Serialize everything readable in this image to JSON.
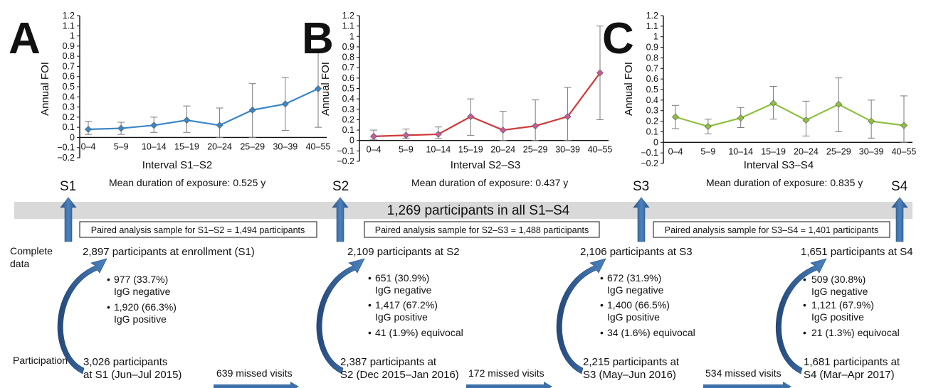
{
  "panels": [
    {
      "letter": "A",
      "interval_label": "Interval S1–S2",
      "mean_duration": "Mean duration of exposure: 0.525 y",
      "color": "#3b86c8",
      "marker_color": "#3b86c8"
    },
    {
      "letter": "B",
      "interval_label": "Interval S2–S3",
      "mean_duration": "Mean duration of exposure: 0.437 y",
      "color": "#d03a3a",
      "marker_color": "#c85a9a"
    },
    {
      "letter": "C",
      "interval_label": "Interval S3–S4",
      "mean_duration": "Mean duration of exposure: 0.835 y",
      "color": "#8dc040",
      "marker_color": "#8dc040"
    }
  ],
  "chart_data": [
    {
      "type": "line",
      "title": "",
      "xlabel": "Interval S1–S2",
      "ylabel": "Annual FOI",
      "categories": [
        "0–4",
        "5–9",
        "10–14",
        "15–19",
        "20–24",
        "25–29",
        "30–39",
        "40–55"
      ],
      "values": [
        0.08,
        0.09,
        0.12,
        0.17,
        0.12,
        0.27,
        0.33,
        0.48
      ],
      "ci_low": [
        0.03,
        0.03,
        0.05,
        0.05,
        0.0,
        0.0,
        0.07,
        0.1
      ],
      "ci_high": [
        0.16,
        0.15,
        0.2,
        0.31,
        0.29,
        0.53,
        0.59,
        0.87
      ],
      "ylim": [
        -0.2,
        1.2
      ],
      "yticks": [
        "−0.2",
        "−0.1",
        "0",
        "0.1",
        "0.2",
        "0.3",
        "0.4",
        "0.5",
        "0.6",
        "0.7",
        "0.8",
        "0.9",
        "1",
        "1.1",
        "1.2"
      ]
    },
    {
      "type": "line",
      "title": "",
      "xlabel": "Interval S2–S3",
      "ylabel": "Annual FOI",
      "categories": [
        "0–4",
        "5–9",
        "10–14",
        "15–19",
        "20–24",
        "25–29",
        "30–39",
        "40–55"
      ],
      "values": [
        0.04,
        0.05,
        0.06,
        0.23,
        0.1,
        0.14,
        0.23,
        0.65
      ],
      "ci_low": [
        0.01,
        0.02,
        0.02,
        0.05,
        0.0,
        0.0,
        0.0,
        0.2
      ],
      "ci_high": [
        0.1,
        0.11,
        0.13,
        0.4,
        0.28,
        0.39,
        0.51,
        1.1
      ],
      "ylim": [
        -0.2,
        1.2
      ],
      "yticks": [
        "−0.2",
        "−0.1",
        "0",
        "0.1",
        "0.2",
        "0.3",
        "0.4",
        "0.5",
        "0.6",
        "0.7",
        "0.8",
        "0.9",
        "1",
        "1.1",
        "1.2"
      ]
    },
    {
      "type": "line",
      "title": "",
      "xlabel": "Interval S3–S4",
      "ylabel": "Annual FOI",
      "categories": [
        "0–4",
        "5–9",
        "10–14",
        "15–19",
        "20–24",
        "25–29",
        "30–39",
        "40–55"
      ],
      "values": [
        0.24,
        0.15,
        0.23,
        0.37,
        0.21,
        0.36,
        0.2,
        0.16
      ],
      "ci_low": [
        0.13,
        0.08,
        0.14,
        0.22,
        0.06,
        0.1,
        0.04,
        0.0
      ],
      "ci_high": [
        0.35,
        0.22,
        0.33,
        0.53,
        0.39,
        0.61,
        0.4,
        0.44
      ],
      "ylim": [
        -0.2,
        1.2
      ],
      "yticks": [
        "−0.2",
        "−0.1",
        "0",
        "0.1",
        "0.2",
        "0.3",
        "0.4",
        "0.5",
        "0.6",
        "0.7",
        "0.8",
        "0.9",
        "1",
        "1.1",
        "1.2"
      ]
    }
  ],
  "surveys": [
    "S1",
    "S2",
    "S3",
    "S4"
  ],
  "banner": "1,269 participants in all S1–S4",
  "paired_samples": [
    "Paired analysis sample for S1–S2 = 1,494 participants",
    "Paired analysis sample for S2–S3 = 1,488 participants",
    "Paired analysis sample for S3–S4 = 1,401 participants"
  ],
  "row_labels": {
    "complete_1": "Complete",
    "complete_2": "data",
    "participation": "Participation"
  },
  "complete_data": [
    "2,897 participants at enrollment (S1)",
    "2,109 participants at S2",
    "2,106 participants at S3",
    "1,651 participants at S4"
  ],
  "serostatus": [
    {
      "neg_count": "977 (33.7%)",
      "neg_label": "IgG negative",
      "pos_count": "1,920 (66.3%)",
      "pos_label": "IgG positive",
      "equivocal": ""
    },
    {
      "neg_count": "651 (30.9%)",
      "neg_label": "IgG negative",
      "pos_count": "1,417 (67.2%)",
      "pos_label": "IgG positive",
      "equivocal": "41 (1.9%) equivocal"
    },
    {
      "neg_count": "672 (31.9%)",
      "neg_label": "IgG negative",
      "pos_count": "1,400 (66.5%)",
      "pos_label": "IgG positive",
      "equivocal": "34 (1.6%) equivocal"
    },
    {
      "neg_count": "509 (30.8%)",
      "neg_label": "IgG negative",
      "pos_count": "1,121 (67.9%)",
      "pos_label": "IgG positive",
      "equivocal": "21 (1.3%) equivocal"
    }
  ],
  "participation": [
    {
      "line1": "3,026 participants",
      "line2": "at S1 (Jun–Jul 2015)"
    },
    {
      "line1": "2,387 participants at",
      "line2": "S2 (Dec 2015–Jan 2016)"
    },
    {
      "line1": "2,215 participants at",
      "line2": "S3 (May–Jun 2016)"
    },
    {
      "line1": "1,681 participants at",
      "line2": "S4 (Mar–Apr 2017)"
    }
  ],
  "missed_visits": [
    "639 missed visits",
    "172 missed visits",
    "534 missed visits"
  ],
  "colors": {
    "arrow": "#3d6fa8",
    "arrow_dark": "#2b5282",
    "banner": "#d9d9d9",
    "errorbar": "#7a7a7a"
  }
}
